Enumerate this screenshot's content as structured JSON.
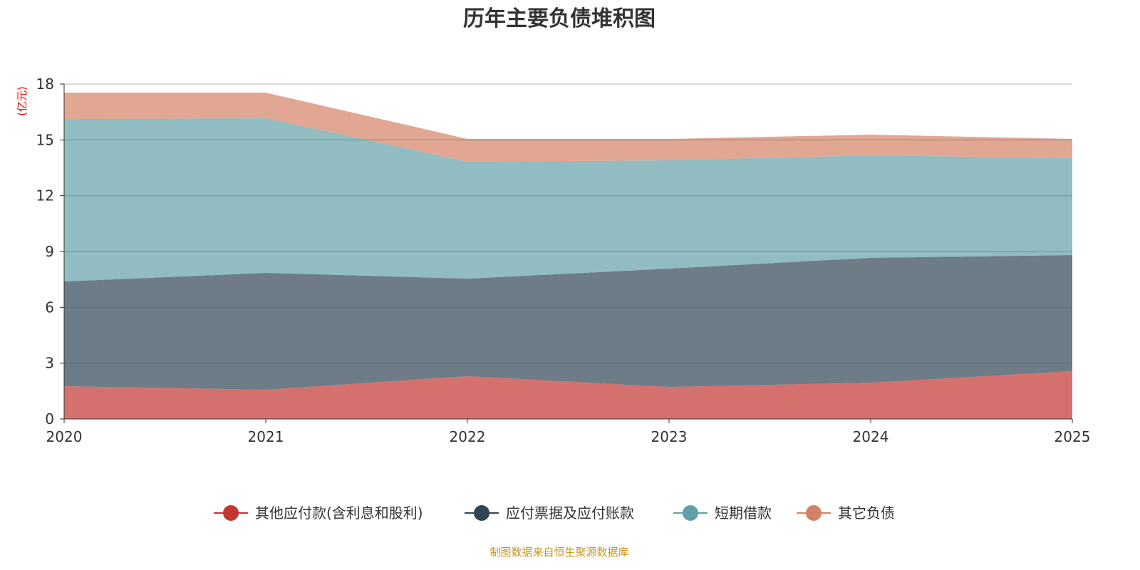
{
  "chart_data": {
    "type": "area",
    "stacked": true,
    "title": "历年主要负债堆积图",
    "ylabel": "(亿元)",
    "xlabel": "",
    "categories": [
      "2020",
      "2021",
      "2022",
      "2023",
      "2024",
      "2025"
    ],
    "ylim": [
      0,
      18
    ],
    "yticks": [
      "0",
      "3",
      "6",
      "9",
      "12",
      "15",
      "18"
    ],
    "grid": true,
    "legend_position": "bottom",
    "series": [
      {
        "name": "其他应付款(含利息和股利)",
        "color": "#c23531",
        "values": [
          1.76,
          1.57,
          2.3,
          1.72,
          1.95,
          2.57
        ]
      },
      {
        "name": "应付票据及应付账款",
        "color": "#2f4554",
        "values": [
          5.63,
          6.28,
          5.24,
          6.36,
          6.71,
          6.24
        ]
      },
      {
        "name": "短期借款",
        "color": "#61a0a8",
        "values": [
          8.73,
          8.31,
          6.29,
          5.82,
          5.51,
          5.21
        ]
      },
      {
        "name": "其它负债",
        "color": "#d48265",
        "values": [
          1.42,
          1.38,
          1.22,
          1.15,
          1.11,
          1.03
        ]
      }
    ],
    "source": "制图数据来自恒生聚源数据库"
  }
}
